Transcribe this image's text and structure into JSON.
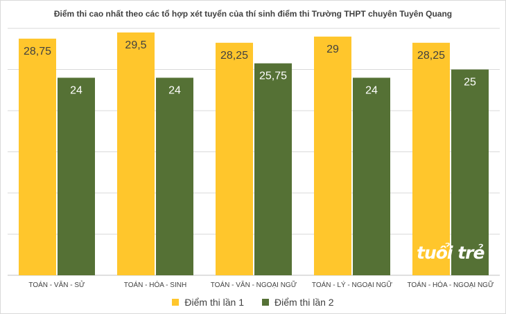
{
  "colors": {
    "series1": "#ffc62c",
    "series2": "#557135",
    "grid": "#d9d9d9",
    "axis": "#bfbfbf",
    "text": "#404040"
  },
  "watermark": "tuổi trẻ",
  "chart_data": {
    "type": "bar",
    "title": "Điểm thi cao nhất theo các tổ hợp xét tuyển của thí sinh điểm thi Trường THPT chuyên Tuyên Quang",
    "categories": [
      "TOÁN - VĂN - SỬ",
      "TOÁN - HÓA - SINH",
      "TOÁN - VĂN - NGOẠI NGỮ",
      "TOÁN - LÝ - NGOẠI NGỮ",
      "TOÁN - HÓA - NGOẠI NGỮ"
    ],
    "series": [
      {
        "name": "Điểm thi lần 1",
        "values": [
          28.75,
          29.5,
          28.25,
          29,
          28.25
        ],
        "labels": [
          "28,75",
          "29,5",
          "28,25",
          "29",
          "28,25"
        ]
      },
      {
        "name": "Điểm thi lần 2",
        "values": [
          24,
          24,
          25.75,
          24,
          25
        ],
        "labels": [
          "24",
          "24",
          "25,75",
          "24",
          "25"
        ]
      }
    ],
    "ylim": [
      0,
      30
    ],
    "gridlines": 6,
    "grid": true,
    "legend": "bottom"
  }
}
